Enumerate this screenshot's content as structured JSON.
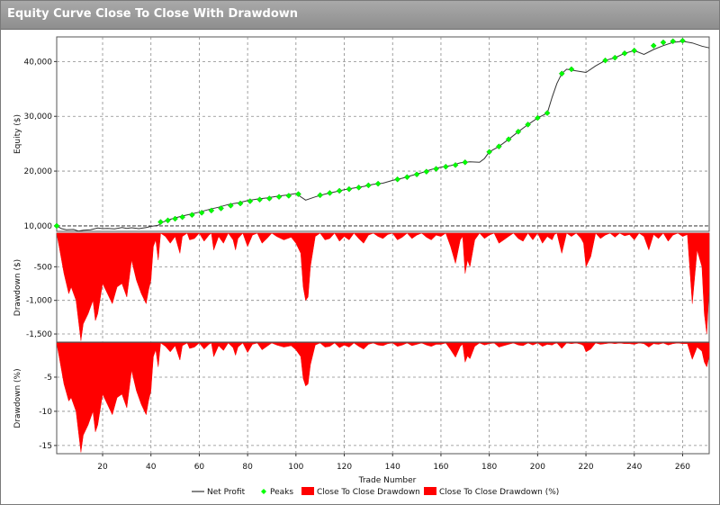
{
  "window": {
    "title": "Equity Curve Close To Close With Drawdown"
  },
  "chart_data": [
    {
      "type": "line",
      "panel": "equity",
      "ylabel": "Equity ($)",
      "xlabel": "Trade Number",
      "xlim": [
        1,
        271
      ],
      "ylim": [
        9000,
        44500
      ],
      "yticks": [
        10000,
        20000,
        30000,
        40000
      ],
      "ytick_labels": [
        "10,000",
        "20,000",
        "30,000",
        "40,000"
      ],
      "xticks": [
        20,
        40,
        60,
        80,
        100,
        120,
        140,
        160,
        180,
        200,
        220,
        240,
        260
      ],
      "xtick_labels": [
        "20",
        "40",
        "60",
        "80",
        "100",
        "120",
        "140",
        "160",
        "180",
        "200",
        "220",
        "240",
        "260"
      ],
      "baseline": 10000,
      "grid": true,
      "x": [
        1,
        3,
        5,
        8,
        10,
        12,
        15,
        18,
        20,
        22,
        25,
        28,
        30,
        32,
        35,
        38,
        40,
        43,
        45,
        48,
        52,
        56,
        60,
        64,
        68,
        72,
        76,
        80,
        84,
        88,
        92,
        96,
        100,
        104,
        108,
        112,
        116,
        120,
        124,
        128,
        132,
        136,
        140,
        144,
        148,
        152,
        156,
        160,
        164,
        168,
        172,
        176,
        178,
        180,
        184,
        188,
        192,
        196,
        200,
        204,
        206,
        208,
        210,
        212,
        216,
        220,
        224,
        228,
        232,
        236,
        240,
        244,
        248,
        252,
        256,
        260,
        264,
        268,
        271
      ],
      "series": [
        {
          "name": "Net Profit",
          "color": "#333333",
          "values": [
            10000,
            9500,
            9300,
            9350,
            9050,
            9200,
            9300,
            9600,
            9500,
            9550,
            9450,
            9700,
            9550,
            9650,
            9500,
            9700,
            9900,
            10100,
            10700,
            11200,
            11700,
            12100,
            12500,
            13000,
            13400,
            13900,
            14200,
            14600,
            14900,
            15100,
            15400,
            15600,
            15900,
            14700,
            15300,
            15800,
            16200,
            16600,
            16900,
            17200,
            17600,
            17800,
            18300,
            18700,
            19200,
            19700,
            20300,
            20700,
            21000,
            21500,
            21700,
            21600,
            22300,
            23500,
            24500,
            25800,
            27200,
            28500,
            29700,
            30600,
            33500,
            36000,
            37800,
            38600,
            38300,
            38000,
            39200,
            40200,
            40700,
            41500,
            42000,
            41300,
            42200,
            42900,
            43500,
            43700,
            43400,
            42800,
            42500
          ]
        },
        {
          "name": "Peaks",
          "color": "#00ff00",
          "marker": "diamond",
          "x": [
            1,
            44,
            47,
            50,
            53,
            57,
            61,
            65,
            69,
            73,
            77,
            81,
            85,
            89,
            93,
            97,
            101,
            110,
            114,
            118,
            122,
            126,
            130,
            134,
            142,
            146,
            150,
            154,
            158,
            162,
            166,
            170,
            180,
            184,
            188,
            192,
            196,
            200,
            204,
            210,
            214,
            228,
            232,
            236,
            240,
            248,
            252,
            256,
            260
          ],
          "values": [
            10000,
            10700,
            11000,
            11300,
            11600,
            12000,
            12400,
            12800,
            13200,
            13700,
            14100,
            14500,
            14800,
            15000,
            15300,
            15500,
            15800,
            15600,
            16000,
            16400,
            16700,
            17000,
            17400,
            17700,
            18500,
            18900,
            19400,
            19900,
            20400,
            20800,
            21100,
            21600,
            23500,
            24500,
            25800,
            27200,
            28500,
            29700,
            30600,
            37800,
            38600,
            40200,
            40700,
            41500,
            42000,
            42900,
            43500,
            43700,
            43800
          ]
        }
      ]
    },
    {
      "type": "area",
      "panel": "drawdown-dollars",
      "ylabel": "Drawdown ($)",
      "ylim": [
        -1620,
        0
      ],
      "yticks": [
        -500,
        -1000,
        -1500
      ],
      "ytick_labels": [
        "-500",
        "-1,000",
        "-1,500"
      ],
      "grid": true,
      "series": [
        {
          "name": "Close To Close Drawdown",
          "color": "#ff0000",
          "x": [
            1,
            2,
            4,
            6,
            7,
            9,
            10,
            11,
            12,
            14,
            16,
            17,
            18,
            20,
            22,
            24,
            26,
            28,
            30,
            32,
            34,
            36,
            38,
            39,
            40,
            41,
            42,
            43,
            44,
            46,
            48,
            50,
            52,
            53,
            55,
            56,
            58,
            60,
            62,
            64,
            65,
            66,
            68,
            70,
            72,
            74,
            75,
            76,
            78,
            80,
            82,
            84,
            86,
            88,
            90,
            92,
            95,
            98,
            100,
            102,
            103,
            104,
            105,
            106,
            108,
            110,
            112,
            114,
            116,
            118,
            120,
            122,
            124,
            126,
            128,
            130,
            132,
            134,
            136,
            138,
            140,
            142,
            144,
            146,
            148,
            150,
            152,
            154,
            156,
            158,
            160,
            162,
            164,
            166,
            168,
            169,
            170,
            171,
            172,
            174,
            176,
            178,
            180,
            182,
            184,
            186,
            188,
            190,
            192,
            194,
            196,
            198,
            200,
            202,
            204,
            206,
            207,
            208,
            210,
            212,
            214,
            216,
            218,
            219,
            220,
            222,
            224,
            226,
            228,
            230,
            232,
            234,
            236,
            238,
            240,
            242,
            244,
            246,
            248,
            250,
            252,
            254,
            256,
            258,
            260,
            262,
            264,
            266,
            268,
            269,
            270,
            271
          ],
          "values": [
            0,
            -200,
            -600,
            -900,
            -800,
            -1000,
            -1300,
            -1600,
            -1350,
            -1200,
            -1000,
            -1300,
            -1200,
            -750,
            -900,
            -1050,
            -800,
            -750,
            -950,
            -400,
            -700,
            -900,
            -1050,
            -850,
            -700,
            -200,
            -100,
            -400,
            0,
            -50,
            -150,
            -50,
            -300,
            -50,
            0,
            -100,
            -80,
            0,
            -120,
            -30,
            0,
            -250,
            -50,
            -150,
            0,
            -100,
            -250,
            -80,
            0,
            -200,
            -30,
            0,
            -150,
            -80,
            0,
            -50,
            -100,
            -60,
            -150,
            -300,
            -800,
            -1000,
            -950,
            -500,
            -50,
            0,
            -100,
            -80,
            0,
            -120,
            -50,
            -100,
            0,
            -80,
            -150,
            -30,
            0,
            -50,
            -80,
            -20,
            0,
            -100,
            -60,
            0,
            -80,
            -30,
            0,
            -60,
            -100,
            -30,
            -50,
            0,
            -200,
            -450,
            -100,
            -50,
            -600,
            -400,
            -500,
            -100,
            0,
            -80,
            -30,
            0,
            -150,
            -100,
            -50,
            0,
            -80,
            -120,
            0,
            -100,
            0,
            -150,
            -50,
            -100,
            -20,
            0,
            -300,
            0,
            -50,
            0,
            -80,
            -150,
            -500,
            -350,
            0,
            -80,
            -30,
            0,
            -60,
            0,
            -40,
            -20,
            -100,
            0,
            -50,
            -250,
            -20,
            -80,
            0,
            -120,
            -30,
            0,
            -50,
            -20,
            -1050,
            -250,
            -500,
            -1200,
            -1500,
            -800
          ]
        }
      ]
    },
    {
      "type": "area",
      "panel": "drawdown-percent",
      "ylabel": "Drawdown (%)",
      "ylim": [
        -16.2,
        0
      ],
      "yticks": [
        -5,
        -10,
        -15
      ],
      "ytick_labels": [
        "-5",
        "-10",
        "-15"
      ],
      "grid": true,
      "series": [
        {
          "name": "Close To Close Drawdown (%)",
          "color": "#ff0000",
          "x": [
            1,
            2,
            4,
            6,
            7,
            9,
            10,
            11,
            12,
            14,
            16,
            17,
            18,
            20,
            22,
            24,
            26,
            28,
            30,
            32,
            34,
            36,
            38,
            39,
            40,
            41,
            42,
            43,
            44,
            46,
            48,
            50,
            52,
            53,
            55,
            56,
            58,
            60,
            62,
            64,
            65,
            66,
            68,
            70,
            72,
            74,
            75,
            76,
            78,
            80,
            82,
            84,
            86,
            88,
            90,
            92,
            95,
            98,
            100,
            102,
            103,
            104,
            105,
            106,
            108,
            110,
            112,
            114,
            116,
            118,
            120,
            122,
            124,
            126,
            128,
            130,
            132,
            134,
            136,
            138,
            140,
            142,
            144,
            146,
            148,
            150,
            152,
            154,
            156,
            158,
            160,
            162,
            164,
            166,
            168,
            169,
            170,
            171,
            172,
            174,
            176,
            178,
            180,
            182,
            184,
            186,
            188,
            190,
            192,
            194,
            196,
            198,
            200,
            202,
            204,
            206,
            207,
            208,
            210,
            212,
            214,
            216,
            218,
            219,
            220,
            222,
            224,
            226,
            228,
            230,
            232,
            234,
            236,
            238,
            240,
            242,
            244,
            246,
            248,
            250,
            252,
            254,
            256,
            258,
            260,
            262,
            264,
            266,
            268,
            269,
            270,
            271
          ],
          "values": [
            0,
            -2,
            -6,
            -8.5,
            -8,
            -10,
            -13,
            -16,
            -13.5,
            -12,
            -10,
            -13,
            -12,
            -7.5,
            -9,
            -10.5,
            -8,
            -7.5,
            -9.5,
            -4,
            -7,
            -9,
            -10.5,
            -8.5,
            -7,
            -2,
            -1,
            -3.5,
            0,
            -0.5,
            -1.3,
            -0.4,
            -2.5,
            -0.4,
            0,
            -0.8,
            -0.6,
            0,
            -0.9,
            -0.2,
            0,
            -2,
            -0.4,
            -1.1,
            0,
            -0.7,
            -1.8,
            -0.6,
            0,
            -1.4,
            -0.2,
            0,
            -1,
            -0.5,
            0,
            -0.3,
            -0.6,
            -0.4,
            -1,
            -2,
            -5.2,
            -6.3,
            -6,
            -3.2,
            -0.3,
            0,
            -0.6,
            -0.5,
            0,
            -0.7,
            -0.3,
            -0.6,
            0,
            -0.5,
            -0.9,
            -0.2,
            0,
            -0.3,
            -0.4,
            -0.1,
            0,
            -0.5,
            -0.3,
            0,
            -0.4,
            -0.2,
            0,
            -0.3,
            -0.5,
            -0.2,
            -0.2,
            0,
            -1,
            -2.1,
            -0.5,
            -0.2,
            -2.8,
            -1.9,
            -2.3,
            -0.5,
            0,
            -0.3,
            -0.1,
            0,
            -0.6,
            -0.4,
            -0.2,
            0,
            -0.3,
            -0.4,
            0,
            -0.3,
            0,
            -0.5,
            -0.2,
            -0.3,
            -0.1,
            0,
            -0.8,
            0,
            -0.1,
            0,
            -0.2,
            -0.4,
            -1.3,
            -0.9,
            0,
            -0.2,
            -0.1,
            0,
            -0.1,
            0,
            -0.1,
            -0.1,
            -0.2,
            0,
            -0.1,
            -0.6,
            -0.1,
            -0.2,
            0,
            -0.3,
            -0.1,
            0,
            -0.1,
            -0.1,
            -2.4,
            -0.6,
            -1.2,
            -2.8,
            -3.5,
            -1.9
          ]
        }
      ]
    }
  ],
  "legend": {
    "items": [
      {
        "label": "Net Profit",
        "kind": "line",
        "color": "#333333"
      },
      {
        "label": "Peaks",
        "kind": "diamond",
        "color": "#00ff00"
      },
      {
        "label": "Close To Close Drawdown",
        "kind": "box",
        "color": "#ff0000"
      },
      {
        "label": "Close To Close Drawdown (%)",
        "kind": "box",
        "color": "#ff0000"
      }
    ]
  }
}
